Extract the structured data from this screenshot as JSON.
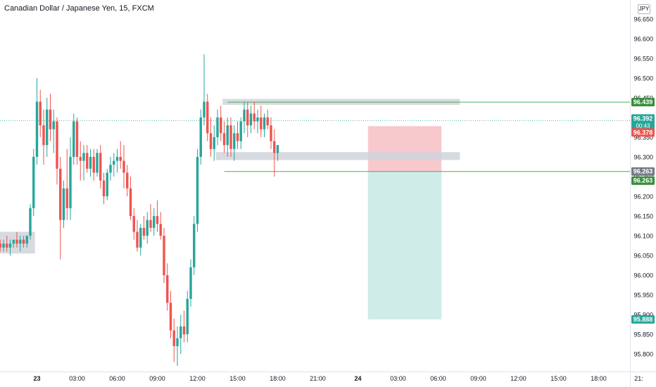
{
  "header": {
    "title": "Canadian Dollar / Japanese Yen, 15, FXCM",
    "currency": "JPY"
  },
  "colors": {
    "up": "#26a69a",
    "down": "#ef5350",
    "zone": "#d1d4dc",
    "line": "#4caf50",
    "risk": "#f7c9cc",
    "reward": "#cfece8"
  },
  "badges": [
    {
      "text": "96.439",
      "color": "#388e3c"
    },
    {
      "text": "96.392",
      "sub": "00:43",
      "color": "#26a69a"
    },
    {
      "text": "96.378",
      "color": "#ef5350"
    },
    {
      "text": "96.263",
      "color": "#787b86"
    },
    {
      "text": "96.263",
      "color": "#388e3c"
    },
    {
      "text": "95.888",
      "color": "#26a69a"
    }
  ],
  "chart_data": {
    "type": "candlestick",
    "symbol": "Canadian Dollar / Japanese Yen, 15, FXCM",
    "ylim": [
      95.77,
      96.68
    ],
    "y_ticks": [
      "96.650",
      "96.600",
      "96.550",
      "96.500",
      "96.450",
      "96.400",
      "96.350",
      "96.300",
      "96.250",
      "96.200",
      "96.150",
      "96.100",
      "96.050",
      "96.000",
      "95.950",
      "95.900",
      "95.850",
      "95.800"
    ],
    "x_ticks": [
      "23",
      "03:00",
      "06:00",
      "09:00",
      "12:00",
      "15:00",
      "18:00",
      "21:00",
      "24",
      "03:00",
      "06:00",
      "09:00",
      "12:00",
      "15:00",
      "18:00",
      "21:"
    ],
    "x_tick_index": [
      0,
      12,
      24,
      36,
      48,
      60,
      72,
      84,
      96,
      108,
      120,
      132,
      144,
      156,
      168,
      180
    ],
    "first_bar_index": -11,
    "candles": [
      [
        96.08,
        96.09,
        96.06,
        96.07
      ],
      [
        96.07,
        96.09,
        96.06,
        96.08
      ],
      [
        96.08,
        96.1,
        96.06,
        96.07
      ],
      [
        96.07,
        96.09,
        96.05,
        96.08
      ],
      [
        96.08,
        96.09,
        96.07,
        96.09
      ],
      [
        96.09,
        96.11,
        96.07,
        96.08
      ],
      [
        96.08,
        96.1,
        96.06,
        96.09
      ],
      [
        96.09,
        96.1,
        96.07,
        96.08
      ],
      [
        96.08,
        96.1,
        96.07,
        96.1
      ],
      [
        96.1,
        96.18,
        96.09,
        96.17
      ],
      [
        96.17,
        96.32,
        96.15,
        96.3
      ],
      [
        96.3,
        96.5,
        96.28,
        96.44
      ],
      [
        96.44,
        96.47,
        96.35,
        96.38
      ],
      [
        96.38,
        96.42,
        96.28,
        96.33
      ],
      [
        96.33,
        96.45,
        96.3,
        96.42
      ],
      [
        96.42,
        96.46,
        96.34,
        96.37
      ],
      [
        96.37,
        96.42,
        96.31,
        96.39
      ],
      [
        96.39,
        96.4,
        96.23,
        96.27
      ],
      [
        96.27,
        96.3,
        96.04,
        96.14
      ],
      [
        96.14,
        96.24,
        96.12,
        96.22
      ],
      [
        96.22,
        96.32,
        96.14,
        96.17
      ],
      [
        96.17,
        96.35,
        96.14,
        96.3
      ],
      [
        96.3,
        96.41,
        96.28,
        96.39
      ],
      [
        96.39,
        96.4,
        96.28,
        96.3
      ],
      [
        96.3,
        96.34,
        96.24,
        96.29
      ],
      [
        96.29,
        96.33,
        96.24,
        96.31
      ],
      [
        96.31,
        96.33,
        96.26,
        96.27
      ],
      [
        96.27,
        96.32,
        96.25,
        96.3
      ],
      [
        96.3,
        96.32,
        96.24,
        96.26
      ],
      [
        96.26,
        96.32,
        96.25,
        96.31
      ],
      [
        96.31,
        96.33,
        96.22,
        96.24
      ],
      [
        96.24,
        96.26,
        96.18,
        96.2
      ],
      [
        96.2,
        96.27,
        96.19,
        96.26
      ],
      [
        96.26,
        96.3,
        96.24,
        96.28
      ],
      [
        96.28,
        96.31,
        96.25,
        96.29
      ],
      [
        96.29,
        96.32,
        96.26,
        96.3
      ],
      [
        96.3,
        96.34,
        96.27,
        96.29
      ],
      [
        96.29,
        96.33,
        96.22,
        96.26
      ],
      [
        96.26,
        96.28,
        96.2,
        96.22
      ],
      [
        96.22,
        96.25,
        96.14,
        96.15
      ],
      [
        96.15,
        96.17,
        96.09,
        96.11
      ],
      [
        96.11,
        96.14,
        96.06,
        96.07
      ],
      [
        96.07,
        96.13,
        96.05,
        96.12
      ],
      [
        96.12,
        96.15,
        96.09,
        96.1
      ],
      [
        96.1,
        96.16,
        96.08,
        96.14
      ],
      [
        96.14,
        96.18,
        96.11,
        96.12
      ],
      [
        96.12,
        96.17,
        96.1,
        96.15
      ],
      [
        96.15,
        96.19,
        96.11,
        96.13
      ],
      [
        96.13,
        96.16,
        96.09,
        96.1
      ],
      [
        96.1,
        96.12,
        95.98,
        96.0
      ],
      [
        96.0,
        96.03,
        95.91,
        95.93
      ],
      [
        95.93,
        95.96,
        95.84,
        95.86
      ],
      [
        95.86,
        95.89,
        95.78,
        95.82
      ],
      [
        95.82,
        95.87,
        95.77,
        95.84
      ],
      [
        95.84,
        95.9,
        95.8,
        95.87
      ],
      [
        95.87,
        95.91,
        95.83,
        95.85
      ],
      [
        95.85,
        95.96,
        95.83,
        95.94
      ],
      [
        95.94,
        96.04,
        95.92,
        96.02
      ],
      [
        96.02,
        96.15,
        96.0,
        96.13
      ],
      [
        96.13,
        96.32,
        96.11,
        96.3
      ],
      [
        96.3,
        96.42,
        96.28,
        96.4
      ],
      [
        96.4,
        96.56,
        96.38,
        96.44
      ],
      [
        96.44,
        96.46,
        96.34,
        96.36
      ],
      [
        96.36,
        96.4,
        96.3,
        96.32
      ],
      [
        96.32,
        96.38,
        96.29,
        96.35
      ],
      [
        96.35,
        96.42,
        96.33,
        96.4
      ],
      [
        96.4,
        96.43,
        96.34,
        96.36
      ],
      [
        96.36,
        96.39,
        96.31,
        96.33
      ],
      [
        96.33,
        96.4,
        96.3,
        96.38
      ],
      [
        96.38,
        96.4,
        96.3,
        96.32
      ],
      [
        96.32,
        96.38,
        96.29,
        96.36
      ],
      [
        96.36,
        96.39,
        96.32,
        96.34
      ],
      [
        96.34,
        96.4,
        96.32,
        96.39
      ],
      [
        96.39,
        96.44,
        96.36,
        96.42
      ],
      [
        96.42,
        96.44,
        96.35,
        96.38
      ],
      [
        96.38,
        96.43,
        96.36,
        96.41
      ],
      [
        96.41,
        96.44,
        96.37,
        96.39
      ],
      [
        96.39,
        96.42,
        96.36,
        96.4
      ],
      [
        96.4,
        96.43,
        96.35,
        96.37
      ],
      [
        96.37,
        96.41,
        96.35,
        96.4
      ],
      [
        96.4,
        96.42,
        96.37,
        96.38
      ],
      [
        96.38,
        96.4,
        96.32,
        96.34
      ],
      [
        96.34,
        96.37,
        96.25,
        96.31
      ],
      [
        96.31,
        96.33,
        96.29,
        96.33
      ]
    ],
    "zones": [
      {
        "x0": -11.5,
        "x1": -0.6,
        "y0": 96.055,
        "y1": 96.11
      },
      {
        "x0": 55.5,
        "x1": 126.5,
        "y0": 96.432,
        "y1": 96.447
      },
      {
        "x0": 53.5,
        "x1": 126.5,
        "y0": 96.292,
        "y1": 96.312
      }
    ],
    "lines": [
      {
        "x0": 56,
        "y": 96.263
      }
    ],
    "position": {
      "x0": 99,
      "x1": 121,
      "entry": 96.263,
      "stop": 96.378,
      "target": 95.888
    },
    "last_price": 96.392,
    "resistance": 96.439
  }
}
